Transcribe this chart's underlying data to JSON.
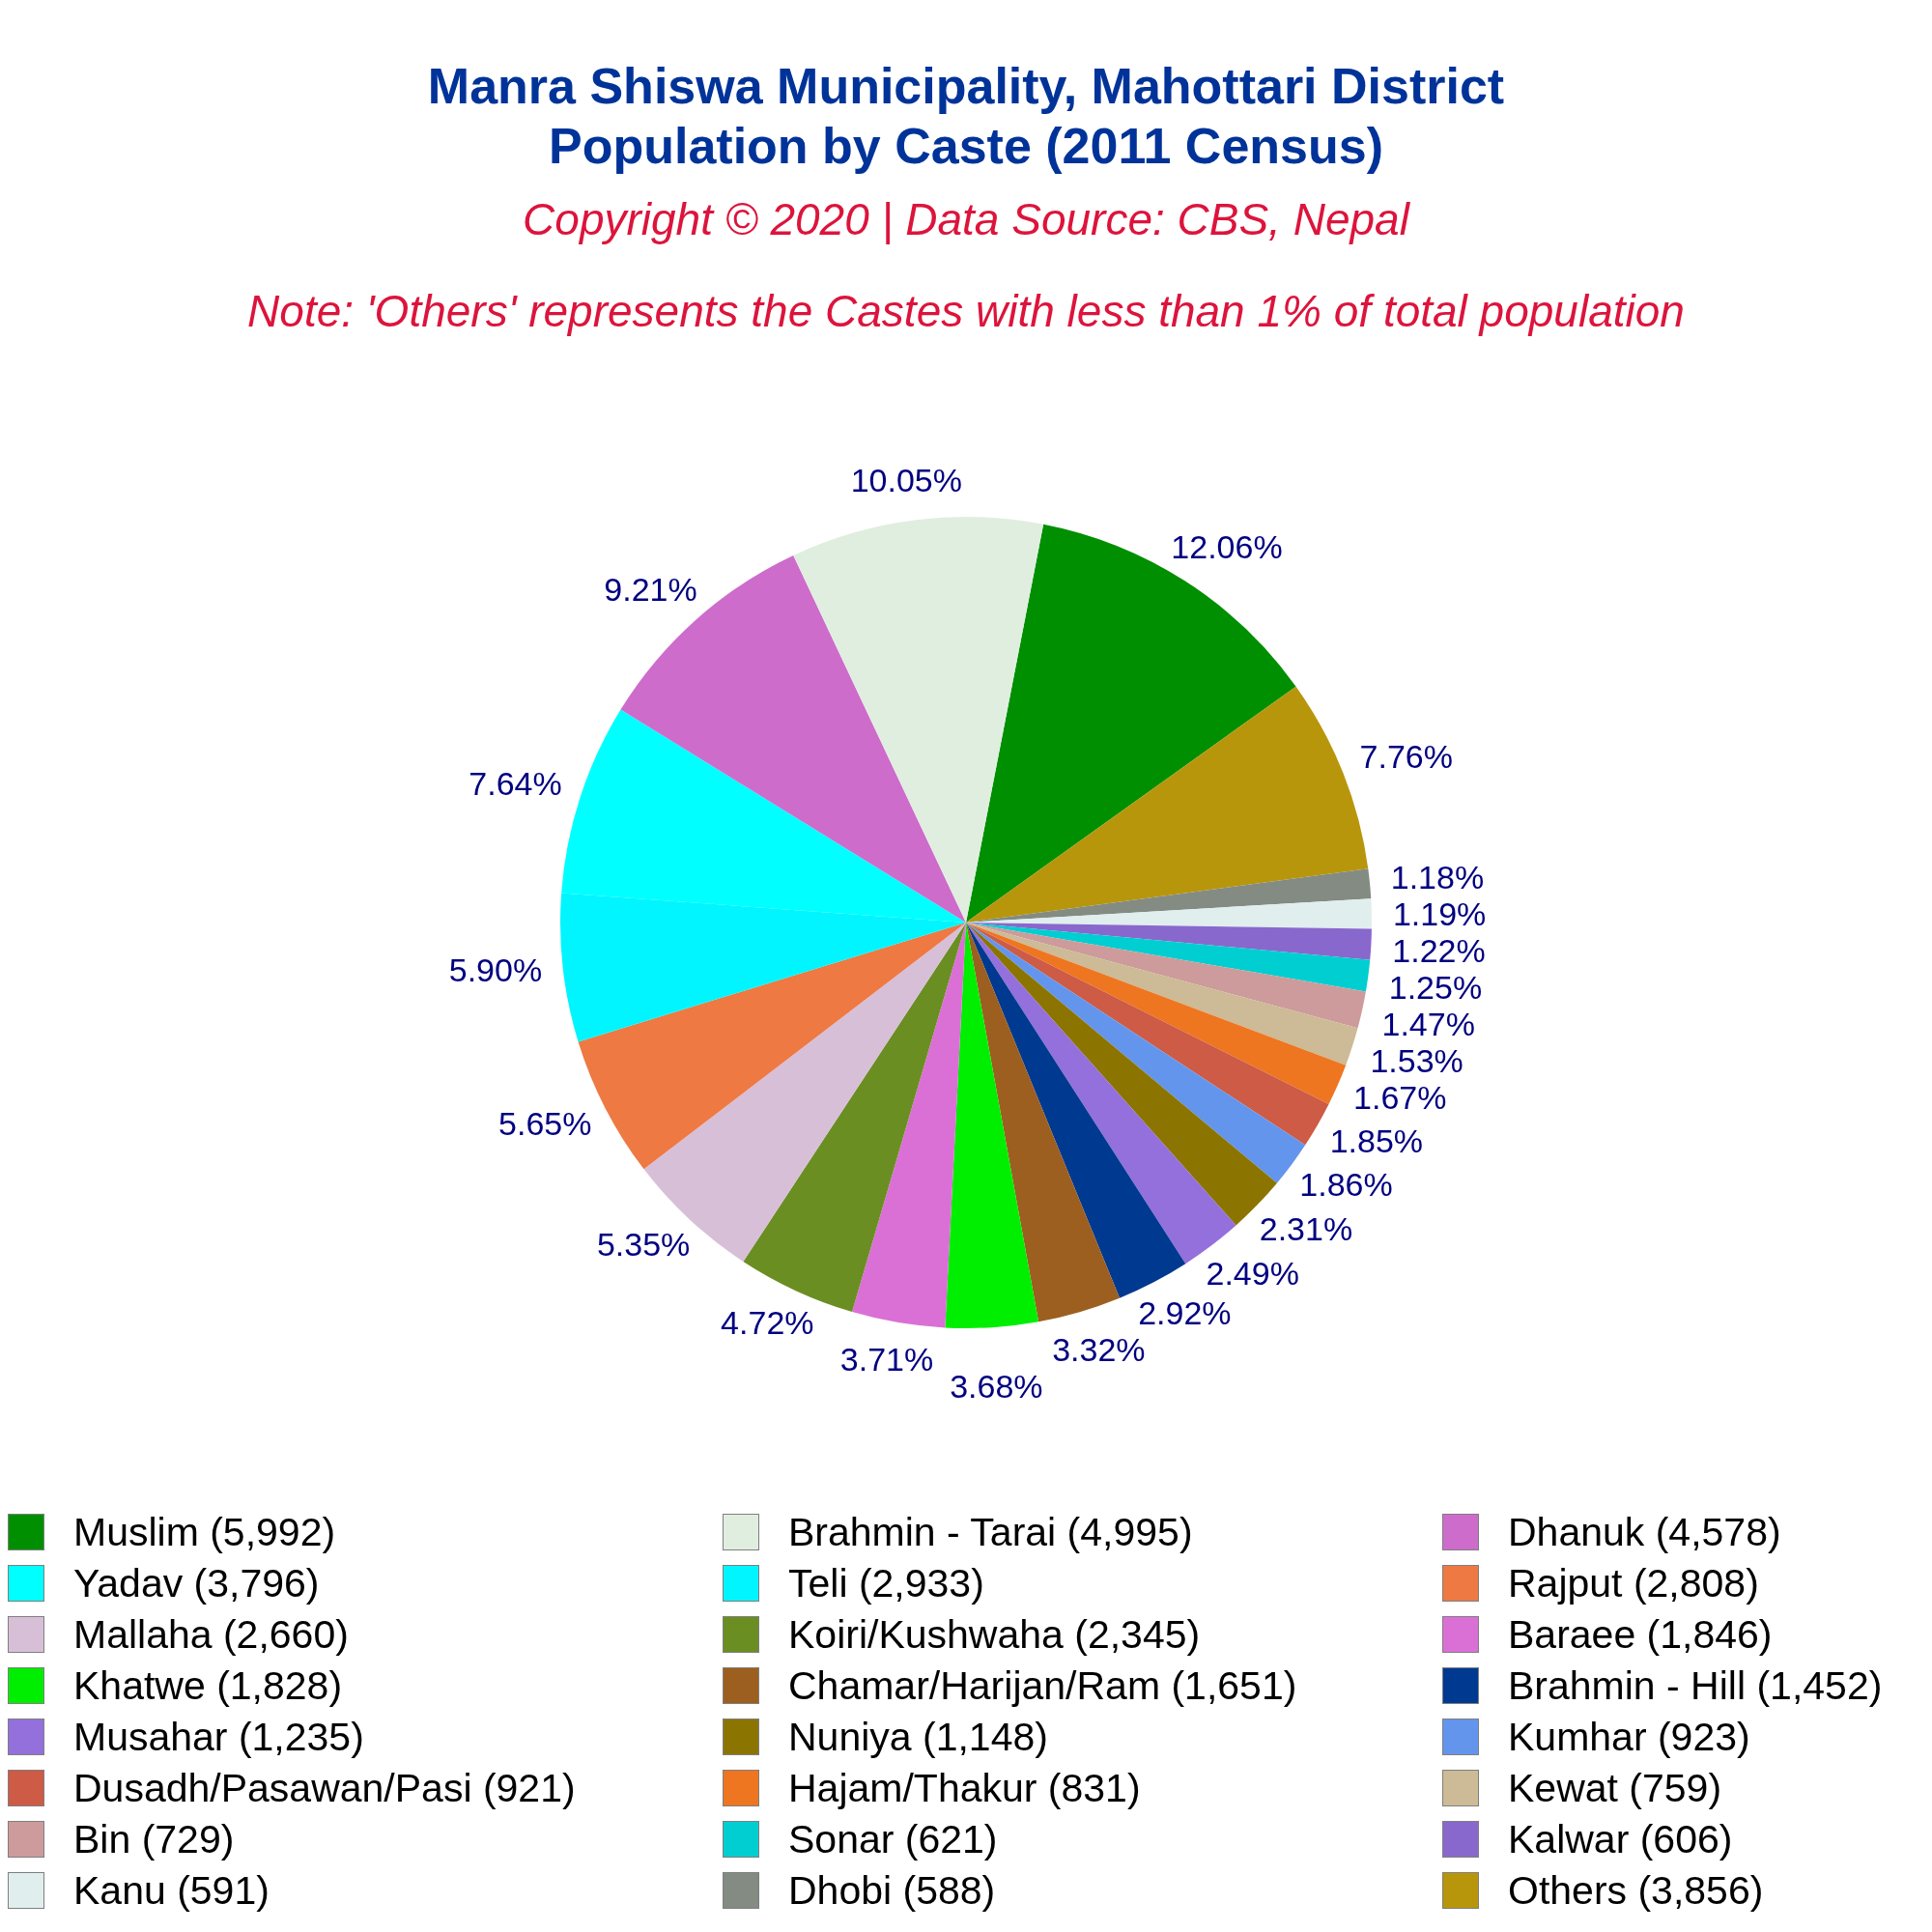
{
  "chart_data": {
    "type": "pie",
    "title": "Manra Shiswa Municipality, Mahottari District\nPopulation by Caste (2011 Census)",
    "annotations": [
      "Copyright © 2020 | Data Source: CBS, Nepal",
      "Note: 'Others' represents the Castes with less than 1% of total population"
    ],
    "categories": [
      "Muslim (5,992)",
      "Brahmin - Tarai (4,995)",
      "Dhanuk (4,578)",
      "Yadav (3,796)",
      "Teli (2,933)",
      "Rajput (2,808)",
      "Mallaha (2,660)",
      "Koiri/Kushwaha (2,345)",
      "Baraee (1,846)",
      "Khatwe (1,828)",
      "Chamar/Harijan/Ram (1,651)",
      "Brahmin - Hill (1,452)",
      "Musahar (1,235)",
      "Nuniya (1,148)",
      "Kumhar (923)",
      "Dusadh/Pasawan/Pasi (921)",
      "Hajam/Thakur (831)",
      "Kewat (759)",
      "Bin (729)",
      "Sonar (621)",
      "Kalwar (606)",
      "Kanu (591)",
      "Dhobi (588)",
      "Others (3,856)"
    ],
    "values": [
      12.06,
      10.05,
      9.21,
      7.64,
      5.9,
      5.65,
      5.35,
      4.72,
      3.71,
      3.68,
      3.32,
      2.92,
      2.49,
      2.31,
      1.86,
      1.85,
      1.67,
      1.53,
      1.47,
      1.25,
      1.22,
      1.19,
      1.18,
      7.76
    ],
    "value_labels": [
      "12.06%",
      "10.05%",
      "9.21%",
      "7.64%",
      "5.90%",
      "5.65%",
      "5.35%",
      "4.72%",
      "3.71%",
      "3.68%",
      "3.32%",
      "2.92%",
      "2.49%",
      "2.31%",
      "1.86%",
      "1.85%",
      "1.67%",
      "1.53%",
      "1.47%",
      "1.25%",
      "1.22%",
      "1.19%",
      "1.18%",
      "7.76%"
    ],
    "colors": [
      "#008f00",
      "#e0eee0",
      "#cd6ccb",
      "#00ffff",
      "#00f5ff",
      "#ee7942",
      "#d8bfd8",
      "#6b8e23",
      "#da70d6",
      "#00ee00",
      "#9c5f1f",
      "#003990",
      "#9370db",
      "#8b7500",
      "#6495ed",
      "#cd5b45",
      "#ee7621",
      "#cdba96",
      "#cd9b9b",
      "#00ced1",
      "#8968cd",
      "#e0eeee",
      "#838b83",
      "#b8960b"
    ],
    "legend": "bottom"
  }
}
